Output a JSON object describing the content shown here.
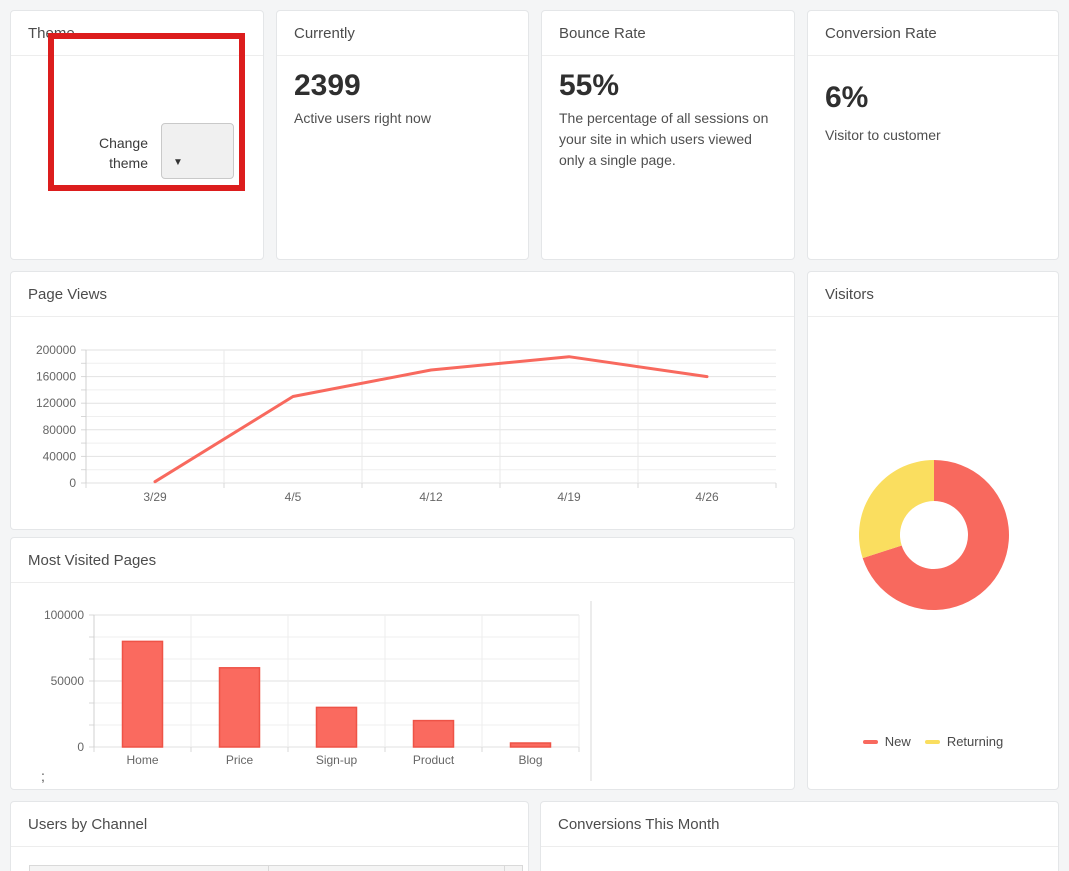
{
  "page": {
    "background": "#f4f5f6"
  },
  "annotation": {
    "shape": "rectangle",
    "color": "#dc1d1d"
  },
  "cards": {
    "theme": {
      "title": "Theme",
      "label": "Change theme",
      "caret": "▼",
      "select_value": ""
    },
    "currently": {
      "title": "Currently",
      "value": "2399",
      "description": "Active users right now"
    },
    "bounce_rate": {
      "title": "Bounce Rate",
      "value": "55%",
      "description": "The percentage of all sessions on your site in which users viewed only a single page."
    },
    "conversion_rate": {
      "title": "Conversion Rate",
      "value": "6%",
      "description": "Visitor to customer"
    },
    "page_views": {
      "title": "Page Views"
    },
    "visitors": {
      "title": "Visitors"
    },
    "most_visited": {
      "title": "Most Visited Pages",
      "stray_text": ";"
    },
    "users_by_channel": {
      "title": "Users by Channel"
    },
    "conversions": {
      "title": "Conversions This Month"
    }
  },
  "chart_data": [
    {
      "id": "page-views",
      "type": "line",
      "title": "Page Views",
      "x": [
        "3/29",
        "4/5",
        "4/12",
        "4/19",
        "4/26"
      ],
      "values": [
        2000,
        130000,
        170000,
        190000,
        160000
      ],
      "ylim": [
        0,
        200000
      ],
      "ytick_step": 40000,
      "ytick_minor": 20000,
      "grid": true,
      "legend_position": "none",
      "line_color": "#f8695e"
    },
    {
      "id": "most-visited-pages",
      "type": "bar",
      "title": "Most Visited Pages",
      "categories": [
        "Home",
        "Price",
        "Sign-up",
        "Product",
        "Blog"
      ],
      "values": [
        80000,
        60000,
        30000,
        20000,
        3000
      ],
      "ylim": [
        0,
        100000
      ],
      "ytick_step": 50000,
      "y_divisions": 6,
      "grid": true,
      "legend_position": "none",
      "bar_color": "#fa6a5f",
      "bar_border": "#ee5347"
    },
    {
      "id": "visitors",
      "type": "pie",
      "subtype": "doughnut",
      "title": "Visitors",
      "labels": [
        "New",
        "Returning"
      ],
      "values": [
        70,
        30
      ],
      "colors": [
        "#f8695e",
        "#fade5f"
      ],
      "legend_position": "bottom"
    }
  ]
}
